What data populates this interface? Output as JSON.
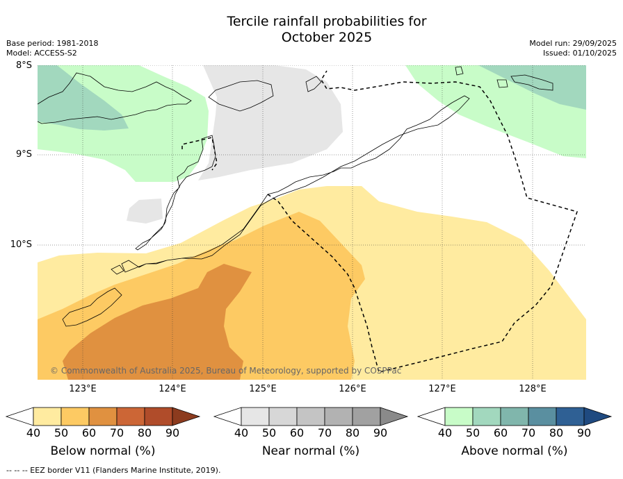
{
  "title": {
    "line1": "Tercile rainfall probabilities for",
    "line2": "October 2025"
  },
  "meta": {
    "base_period": "Base period: 1981-2018",
    "model": "Model: ACCESS-S2",
    "model_run": "Model run: 29/09/2025",
    "issued": "Issued: 01/10/2025"
  },
  "axes": {
    "lat_labels": [
      "8°S",
      "9°S",
      "10°S"
    ],
    "lon_labels": [
      "123°E",
      "124°E",
      "125°E",
      "126°E",
      "127°E",
      "128°E"
    ]
  },
  "copyright": "© Commonwealth of Australia 2025, Bureau of Meteorology, supported by COSPPac",
  "colorbars": {
    "below": {
      "label": "Below normal (%)",
      "ticks": [
        "40",
        "50",
        "60",
        "70",
        "80",
        "90"
      ],
      "colors": [
        "#ffeba0",
        "#fdca63",
        "#e09140",
        "#cc6636",
        "#b04c2a",
        "#8c3b1e"
      ]
    },
    "near": {
      "label": "Near normal (%)",
      "ticks": [
        "40",
        "50",
        "60",
        "70",
        "80",
        "90"
      ],
      "colors": [
        "#e6e6e6",
        "#d7d7d7",
        "#c4c4c4",
        "#b2b2b2",
        "#a1a1a1",
        "#8a8a8a"
      ]
    },
    "above": {
      "label": "Above normal (%)",
      "ticks": [
        "40",
        "50",
        "60",
        "70",
        "80",
        "90"
      ],
      "colors": [
        "#c8fcc8",
        "#a2d8be",
        "#80b6ac",
        "#5a8fa0",
        "#2f6094",
        "#1f4a80"
      ]
    }
  },
  "footnote": "--  --  -- EEZ border V11 (Flanders Marine Institute, 2019)."
}
